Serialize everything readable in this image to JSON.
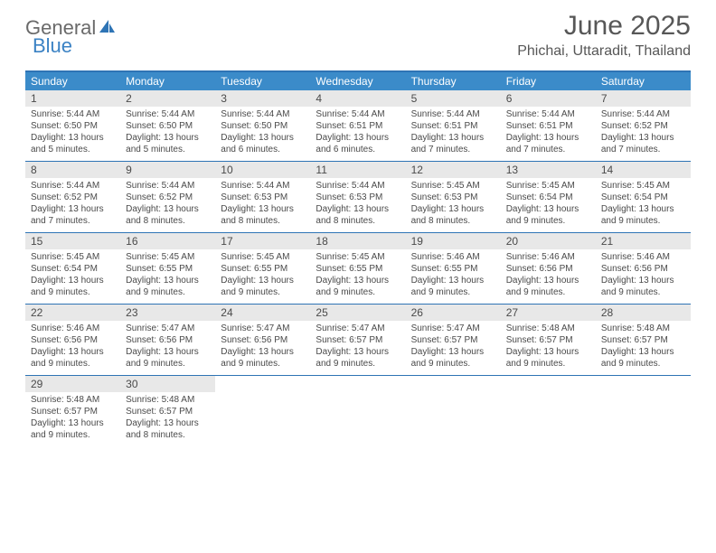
{
  "logo": {
    "part1": "General",
    "part2": "Blue"
  },
  "title": "June 2025",
  "location": "Phichai, Uttaradit, Thailand",
  "colors": {
    "header_bg": "#3b8bc9",
    "border": "#2e74b5",
    "daynum_bg": "#e8e8e8",
    "text": "#4a4a4a",
    "logo_gray": "#6a6a6a",
    "logo_blue": "#3b82c4"
  },
  "day_names": [
    "Sunday",
    "Monday",
    "Tuesday",
    "Wednesday",
    "Thursday",
    "Friday",
    "Saturday"
  ],
  "weeks": [
    [
      {
        "n": "1",
        "sr": "5:44 AM",
        "ss": "6:50 PM",
        "dl": "13 hours and 5 minutes."
      },
      {
        "n": "2",
        "sr": "5:44 AM",
        "ss": "6:50 PM",
        "dl": "13 hours and 5 minutes."
      },
      {
        "n": "3",
        "sr": "5:44 AM",
        "ss": "6:50 PM",
        "dl": "13 hours and 6 minutes."
      },
      {
        "n": "4",
        "sr": "5:44 AM",
        "ss": "6:51 PM",
        "dl": "13 hours and 6 minutes."
      },
      {
        "n": "5",
        "sr": "5:44 AM",
        "ss": "6:51 PM",
        "dl": "13 hours and 7 minutes."
      },
      {
        "n": "6",
        "sr": "5:44 AM",
        "ss": "6:51 PM",
        "dl": "13 hours and 7 minutes."
      },
      {
        "n": "7",
        "sr": "5:44 AM",
        "ss": "6:52 PM",
        "dl": "13 hours and 7 minutes."
      }
    ],
    [
      {
        "n": "8",
        "sr": "5:44 AM",
        "ss": "6:52 PM",
        "dl": "13 hours and 7 minutes."
      },
      {
        "n": "9",
        "sr": "5:44 AM",
        "ss": "6:52 PM",
        "dl": "13 hours and 8 minutes."
      },
      {
        "n": "10",
        "sr": "5:44 AM",
        "ss": "6:53 PM",
        "dl": "13 hours and 8 minutes."
      },
      {
        "n": "11",
        "sr": "5:44 AM",
        "ss": "6:53 PM",
        "dl": "13 hours and 8 minutes."
      },
      {
        "n": "12",
        "sr": "5:45 AM",
        "ss": "6:53 PM",
        "dl": "13 hours and 8 minutes."
      },
      {
        "n": "13",
        "sr": "5:45 AM",
        "ss": "6:54 PM",
        "dl": "13 hours and 9 minutes."
      },
      {
        "n": "14",
        "sr": "5:45 AM",
        "ss": "6:54 PM",
        "dl": "13 hours and 9 minutes."
      }
    ],
    [
      {
        "n": "15",
        "sr": "5:45 AM",
        "ss": "6:54 PM",
        "dl": "13 hours and 9 minutes."
      },
      {
        "n": "16",
        "sr": "5:45 AM",
        "ss": "6:55 PM",
        "dl": "13 hours and 9 minutes."
      },
      {
        "n": "17",
        "sr": "5:45 AM",
        "ss": "6:55 PM",
        "dl": "13 hours and 9 minutes."
      },
      {
        "n": "18",
        "sr": "5:45 AM",
        "ss": "6:55 PM",
        "dl": "13 hours and 9 minutes."
      },
      {
        "n": "19",
        "sr": "5:46 AM",
        "ss": "6:55 PM",
        "dl": "13 hours and 9 minutes."
      },
      {
        "n": "20",
        "sr": "5:46 AM",
        "ss": "6:56 PM",
        "dl": "13 hours and 9 minutes."
      },
      {
        "n": "21",
        "sr": "5:46 AM",
        "ss": "6:56 PM",
        "dl": "13 hours and 9 minutes."
      }
    ],
    [
      {
        "n": "22",
        "sr": "5:46 AM",
        "ss": "6:56 PM",
        "dl": "13 hours and 9 minutes."
      },
      {
        "n": "23",
        "sr": "5:47 AM",
        "ss": "6:56 PM",
        "dl": "13 hours and 9 minutes."
      },
      {
        "n": "24",
        "sr": "5:47 AM",
        "ss": "6:56 PM",
        "dl": "13 hours and 9 minutes."
      },
      {
        "n": "25",
        "sr": "5:47 AM",
        "ss": "6:57 PM",
        "dl": "13 hours and 9 minutes."
      },
      {
        "n": "26",
        "sr": "5:47 AM",
        "ss": "6:57 PM",
        "dl": "13 hours and 9 minutes."
      },
      {
        "n": "27",
        "sr": "5:48 AM",
        "ss": "6:57 PM",
        "dl": "13 hours and 9 minutes."
      },
      {
        "n": "28",
        "sr": "5:48 AM",
        "ss": "6:57 PM",
        "dl": "13 hours and 9 minutes."
      }
    ],
    [
      {
        "n": "29",
        "sr": "5:48 AM",
        "ss": "6:57 PM",
        "dl": "13 hours and 9 minutes."
      },
      {
        "n": "30",
        "sr": "5:48 AM",
        "ss": "6:57 PM",
        "dl": "13 hours and 8 minutes."
      },
      null,
      null,
      null,
      null,
      null
    ]
  ],
  "labels": {
    "sunrise": "Sunrise: ",
    "sunset": "Sunset: ",
    "daylight": "Daylight: "
  }
}
